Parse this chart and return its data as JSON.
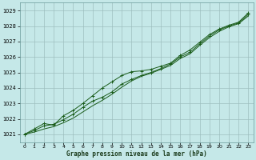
{
  "xlabel": "Graphe pression niveau de la mer (hPa)",
  "bg_color": "#c5e8e8",
  "grid_color": "#9dbfbf",
  "line_color": "#1a5c1a",
  "marker_color": "#1a5c1a",
  "ylim": [
    1020.5,
    1029.5
  ],
  "xlim": [
    -0.5,
    23.5
  ],
  "yticks": [
    1021,
    1022,
    1023,
    1024,
    1025,
    1026,
    1027,
    1028,
    1029
  ],
  "xticks": [
    0,
    1,
    2,
    3,
    4,
    5,
    6,
    7,
    8,
    9,
    10,
    11,
    12,
    13,
    14,
    15,
    16,
    17,
    18,
    19,
    20,
    21,
    22,
    23
  ],
  "line1_x": [
    0,
    1,
    2,
    3,
    4,
    5,
    6,
    7,
    8,
    9,
    10,
    11,
    12,
    13,
    14,
    15,
    16,
    17,
    18,
    19,
    20,
    21,
    22,
    23
  ],
  "line1_y": [
    1021.0,
    1021.35,
    1021.7,
    1021.6,
    1022.2,
    1022.55,
    1023.0,
    1023.5,
    1024.0,
    1024.4,
    1024.8,
    1025.05,
    1025.1,
    1025.2,
    1025.4,
    1025.6,
    1026.1,
    1026.45,
    1026.95,
    1027.45,
    1027.8,
    1028.05,
    1028.25,
    1028.85
  ],
  "line2_x": [
    0,
    1,
    2,
    3,
    4,
    5,
    6,
    7,
    8,
    9,
    10,
    11,
    12,
    13,
    14,
    15,
    16,
    17,
    18,
    19,
    20,
    21,
    22,
    23
  ],
  "line2_y": [
    1021.0,
    1021.25,
    1021.55,
    1021.65,
    1021.95,
    1022.3,
    1022.75,
    1023.15,
    1023.4,
    1023.75,
    1024.25,
    1024.55,
    1024.8,
    1025.0,
    1025.25,
    1025.55,
    1026.0,
    1026.3,
    1026.85,
    1027.35,
    1027.75,
    1028.0,
    1028.2,
    1028.75
  ],
  "line3_x": [
    0,
    1,
    2,
    3,
    4,
    5,
    6,
    7,
    8,
    9,
    10,
    11,
    12,
    13,
    14,
    15,
    16,
    17,
    18,
    19,
    20,
    21,
    22,
    23
  ],
  "line3_y": [
    1021.0,
    1021.15,
    1021.35,
    1021.5,
    1021.75,
    1022.05,
    1022.45,
    1022.85,
    1023.2,
    1023.6,
    1024.05,
    1024.45,
    1024.75,
    1024.95,
    1025.2,
    1025.45,
    1025.9,
    1026.2,
    1026.75,
    1027.25,
    1027.65,
    1027.95,
    1028.15,
    1028.65
  ]
}
